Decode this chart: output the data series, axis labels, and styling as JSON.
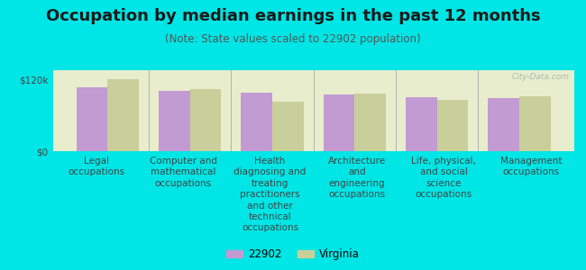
{
  "title": "Occupation by median earnings in the past 12 months",
  "subtitle": "(Note: State values scaled to 22902 population)",
  "background_color": "#00e5e5",
  "plot_bg_color": "#e8edcd",
  "categories": [
    "Legal\noccupations",
    "Computer and\nmathematical\noccupations",
    "Health\ndiagnosing and\ntreating\npractitioners\nand other\ntechnical\noccupations",
    "Architecture\nand\nengineering\noccupations",
    "Life, physical,\nand social\nscience\noccupations",
    "Management\noccupations"
  ],
  "values_22902": [
    107000,
    100000,
    97000,
    95000,
    90000,
    88000
  ],
  "values_virginia": [
    120000,
    103000,
    82000,
    96000,
    85000,
    92000
  ],
  "color_22902": "#c39bd3",
  "color_virginia": "#c8cf9a",
  "ylim": [
    0,
    135000
  ],
  "yticks": [
    0,
    120000
  ],
  "ytick_labels": [
    "$0",
    "$120k"
  ],
  "legend_labels": [
    "22902",
    "Virginia"
  ],
  "bar_width": 0.38,
  "title_fontsize": 13,
  "subtitle_fontsize": 8.5,
  "tick_label_fontsize": 7.5,
  "watermark": "City-Data.com"
}
